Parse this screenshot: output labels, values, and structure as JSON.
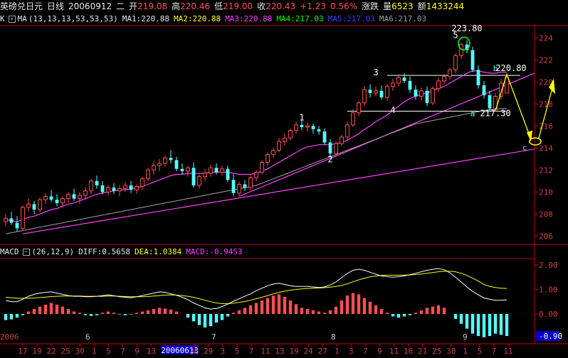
{
  "header": {
    "symbol": "英磅兑日元",
    "period": "日线",
    "date": "20060912",
    "weekday": "二",
    "open_label": "开",
    "open": "219.08",
    "high_label": "高",
    "high": "220.46",
    "low_label": "低",
    "low": "219.00",
    "close_label": "收",
    "close": "220.43",
    "change_label": "涨跌",
    "change": "+1.23",
    "change_pct": "0.56%",
    "volume_label": "量",
    "volume": "6523",
    "amount_label": "额",
    "amount": "1433244"
  },
  "ma_bar": {
    "prefix": "K",
    "name": "MA",
    "params": "(13,13,13,53,53,53)",
    "ma1": "MA1:220.88",
    "ma2": "MA2:220.88",
    "ma3": "MA3:220.88",
    "ma4": "MA4:217.03",
    "ma5": "MA5:217.03",
    "ma6": "MA6:217.03"
  },
  "macd_bar": {
    "name": "MACD",
    "params": "(26,12,9)",
    "diff": "DIFF:0.5658",
    "dea": "DEA:1.0384",
    "macd": "MACD:-0.9453"
  },
  "colors": {
    "up": "#ff5050",
    "down": "#54ffff",
    "ma_fast": "#ff40ff",
    "ma_slow": "#a0a0a0",
    "trendline": "#ff40ff",
    "annotation": "#ffff00",
    "axis": "#c00000"
  },
  "chart_data": [
    {
      "type": "candlestick",
      "title": "英磅兑日元 日线",
      "ylim": [
        205.5,
        225
      ],
      "y_ticks": [
        206,
        208,
        210,
        212,
        214,
        216,
        218,
        220,
        222,
        224
      ],
      "candles": [
        [
          207.3,
          208.0,
          206.9,
          207.6
        ],
        [
          207.6,
          208.2,
          207.0,
          207.2
        ],
        [
          207.2,
          207.8,
          206.4,
          206.7
        ],
        [
          206.7,
          208.8,
          206.5,
          208.6
        ],
        [
          208.6,
          209.4,
          208.2,
          208.9
        ],
        [
          208.9,
          209.2,
          208.0,
          208.4
        ],
        [
          208.4,
          209.5,
          208.2,
          209.3
        ],
        [
          209.3,
          209.9,
          208.9,
          209.6
        ],
        [
          209.6,
          210.2,
          209.1,
          209.3
        ],
        [
          209.3,
          209.8,
          208.7,
          209.0
        ],
        [
          209.0,
          209.6,
          208.6,
          209.4
        ],
        [
          209.4,
          210.0,
          209.0,
          209.8
        ],
        [
          209.8,
          210.3,
          209.2,
          209.4
        ],
        [
          209.4,
          210.0,
          208.9,
          209.7
        ],
        [
          209.7,
          210.4,
          209.3,
          210.1
        ],
        [
          210.1,
          211.2,
          209.8,
          211.0
        ],
        [
          211.0,
          211.5,
          210.3,
          210.6
        ],
        [
          210.6,
          211.0,
          209.8,
          210.0
        ],
        [
          210.0,
          210.6,
          209.7,
          210.4
        ],
        [
          210.4,
          210.8,
          209.8,
          210.1
        ],
        [
          210.1,
          210.6,
          209.6,
          210.3
        ],
        [
          210.3,
          210.9,
          210.0,
          210.6
        ],
        [
          210.6,
          211.0,
          209.9,
          210.2
        ],
        [
          210.2,
          210.7,
          209.8,
          210.5
        ],
        [
          210.5,
          211.4,
          210.2,
          211.2
        ],
        [
          211.2,
          212.2,
          211.0,
          212.0
        ],
        [
          212.0,
          212.8,
          211.6,
          212.4
        ],
        [
          212.4,
          213.0,
          211.9,
          212.6
        ],
        [
          212.6,
          213.3,
          212.3,
          213.1
        ],
        [
          213.1,
          213.8,
          212.6,
          212.9
        ],
        [
          212.9,
          213.2,
          211.9,
          212.1
        ],
        [
          212.1,
          212.6,
          211.6,
          211.9
        ],
        [
          211.9,
          212.4,
          211.4,
          212.2
        ],
        [
          212.2,
          212.7,
          210.4,
          210.6
        ],
        [
          210.6,
          211.6,
          210.3,
          211.4
        ],
        [
          211.4,
          212.1,
          211.0,
          211.7
        ],
        [
          211.7,
          212.5,
          211.4,
          212.2
        ],
        [
          212.2,
          212.6,
          211.6,
          211.8
        ],
        [
          211.8,
          212.4,
          211.5,
          212.1
        ],
        [
          212.1,
          212.4,
          210.9,
          211.1
        ],
        [
          211.1,
          211.6,
          209.6,
          209.9
        ],
        [
          209.9,
          210.9,
          209.6,
          210.7
        ],
        [
          210.7,
          211.1,
          210.1,
          210.4
        ],
        [
          210.4,
          211.5,
          210.2,
          211.3
        ],
        [
          211.3,
          212.0,
          211.0,
          211.8
        ],
        [
          211.8,
          212.9,
          211.6,
          212.7
        ],
        [
          212.7,
          213.6,
          212.4,
          213.4
        ],
        [
          213.4,
          214.0,
          213.1,
          213.8
        ],
        [
          213.8,
          214.9,
          213.6,
          214.6
        ],
        [
          214.6,
          215.3,
          214.2,
          214.9
        ],
        [
          214.9,
          215.8,
          214.7,
          215.6
        ],
        [
          215.6,
          216.4,
          215.3,
          216.1
        ],
        [
          216.1,
          216.6,
          215.6,
          215.9
        ],
        [
          215.9,
          216.3,
          215.5,
          216.0
        ],
        [
          216.0,
          216.2,
          215.3,
          215.7
        ],
        [
          215.7,
          216.0,
          215.2,
          215.5
        ],
        [
          215.5,
          215.8,
          214.3,
          214.5
        ],
        [
          214.5,
          214.8,
          213.1,
          213.5
        ],
        [
          213.5,
          214.6,
          213.3,
          214.4
        ],
        [
          214.4,
          215.2,
          214.2,
          215.0
        ],
        [
          215.0,
          216.4,
          214.8,
          216.1
        ],
        [
          216.1,
          217.5,
          215.9,
          217.2
        ],
        [
          217.2,
          218.3,
          216.9,
          218.1
        ],
        [
          218.1,
          219.6,
          217.8,
          219.3
        ],
        [
          219.3,
          219.8,
          218.6,
          219.0
        ],
        [
          219.0,
          219.6,
          218.7,
          219.2
        ],
        [
          219.2,
          219.7,
          218.4,
          218.6
        ],
        [
          218.6,
          219.8,
          218.3,
          219.6
        ],
        [
          219.6,
          220.3,
          219.2,
          219.9
        ],
        [
          219.9,
          220.7,
          219.6,
          220.4
        ],
        [
          220.4,
          220.8,
          219.9,
          220.1
        ],
        [
          220.1,
          220.5,
          219.0,
          219.3
        ],
        [
          219.3,
          219.7,
          218.4,
          218.7
        ],
        [
          218.7,
          219.5,
          218.3,
          219.2
        ],
        [
          219.2,
          219.6,
          217.8,
          218.1
        ],
        [
          218.1,
          219.6,
          217.9,
          219.4
        ],
        [
          219.4,
          220.4,
          219.1,
          220.1
        ],
        [
          220.1,
          220.7,
          219.8,
          220.5
        ],
        [
          220.5,
          221.3,
          220.2,
          221.1
        ],
        [
          221.1,
          222.6,
          220.8,
          222.4
        ],
        [
          222.4,
          223.6,
          222.1,
          223.4
        ],
        [
          223.4,
          223.8,
          222.6,
          222.9
        ],
        [
          222.9,
          223.2,
          220.9,
          221.1
        ],
        [
          221.1,
          221.5,
          219.4,
          219.7
        ],
        [
          219.7,
          220.1,
          218.5,
          218.8
        ],
        [
          218.8,
          219.2,
          217.3,
          217.6
        ],
        [
          217.6,
          219.0,
          217.3,
          218.7
        ],
        [
          218.7,
          220.3,
          218.4,
          219.9
        ],
        [
          219.0,
          220.46,
          219.0,
          220.43
        ]
      ],
      "ma_fast": [
        207.5,
        207.4,
        207.3,
        207.5,
        207.7,
        207.8,
        208.0,
        208.2,
        208.4,
        208.5,
        208.7,
        208.9,
        209.0,
        209.2,
        209.4,
        209.6,
        209.8,
        209.9,
        210.0,
        210.1,
        210.2,
        210.2,
        210.3,
        210.4,
        210.5,
        210.7,
        210.9,
        211.1,
        211.3,
        211.5,
        211.6,
        211.6,
        211.7,
        211.7,
        211.7,
        211.7,
        211.8,
        211.8,
        211.8,
        211.8,
        211.7,
        211.6,
        211.6,
        211.6,
        211.7,
        211.9,
        212.1,
        212.4,
        212.7,
        213.0,
        213.3,
        213.6,
        213.9,
        214.1,
        214.2,
        214.3,
        214.3,
        214.3,
        214.4,
        214.5,
        214.7,
        215.0,
        215.3,
        215.7,
        216.0,
        216.4,
        216.7,
        217.0,
        217.4,
        217.8,
        218.2,
        218.5,
        218.7,
        218.9,
        219.0,
        219.2,
        219.4,
        219.6,
        219.9,
        220.2,
        220.5,
        220.8,
        221.0,
        221.0,
        220.9,
        220.8,
        220.8,
        220.9,
        220.9
      ],
      "ma_slow": [
        206.2,
        206.3,
        206.4,
        206.5,
        206.6,
        206.7,
        206.8,
        206.9,
        207.0,
        207.1,
        207.2,
        207.3,
        207.4,
        207.5,
        207.6,
        207.7,
        207.8,
        207.9,
        208.0,
        208.1,
        208.2,
        208.3,
        208.4,
        208.5,
        208.6,
        208.7,
        208.8,
        208.9,
        209.0,
        209.1,
        209.2,
        209.3,
        209.4,
        209.5,
        209.6,
        209.7,
        209.8,
        209.9,
        210.0,
        210.1,
        210.2,
        210.3,
        210.4,
        210.5,
        210.6,
        210.8,
        211.0,
        211.2,
        211.4,
        211.6,
        211.8,
        212.0,
        212.2,
        212.4,
        212.6,
        212.8,
        213.0,
        213.2,
        213.4,
        213.6,
        213.8,
        214.0,
        214.2,
        214.4,
        214.6,
        214.8,
        215.0,
        215.2,
        215.4,
        215.6,
        215.8,
        216.0,
        216.2,
        216.3,
        216.4,
        216.5,
        216.6,
        216.7,
        216.8,
        216.9,
        217.0,
        217.1,
        217.2,
        217.3,
        217.4,
        217.5,
        217.5,
        217.6,
        217.6
      ],
      "annotations": {
        "wave_labels": [
          "1",
          "2",
          "3",
          "4",
          "5"
        ],
        "abc_labels": [
          "a",
          "b",
          "c"
        ],
        "price_labels": [
          "223.80",
          "220.80",
          "217.30"
        ]
      }
    },
    {
      "type": "macd",
      "ylim": [
        -1.1,
        2.2
      ],
      "y_ticks": [
        2.0,
        1.0,
        0.0,
        -0.9
      ],
      "y_tick_labels": [
        "2.00",
        "1.00",
        "0.00",
        "-0.90"
      ],
      "x_labels": [
        "2006",
        "6",
        "7",
        "8",
        "9"
      ],
      "date_ticks": [
        "17",
        "19",
        "22",
        "25",
        "30",
        "1",
        "5",
        "7",
        "9",
        "13",
        "15",
        "20060613",
        "26",
        "29",
        "3",
        "5",
        "7",
        "11",
        "13",
        "19",
        "24",
        "27",
        "1",
        "3",
        "7",
        "9",
        "11",
        "16",
        "21",
        "25",
        "30",
        "1",
        "5",
        "7",
        "11"
      ],
      "hist": [
        -0.25,
        -0.22,
        -0.15,
        -0.05,
        0.1,
        0.2,
        0.3,
        0.38,
        0.45,
        0.38,
        0.3,
        0.2,
        0.1,
        0.05,
        -0.05,
        -0.08,
        -0.05,
        0.05,
        0.1,
        0.05,
        -0.02,
        -0.05,
        -0.02,
        0.05,
        0.1,
        0.15,
        0.2,
        0.25,
        0.22,
        0.18,
        0.1,
        0.0,
        -0.15,
        -0.3,
        -0.45,
        -0.55,
        -0.5,
        -0.35,
        -0.25,
        -0.1,
        0.05,
        0.15,
        0.25,
        0.35,
        0.45,
        0.55,
        0.65,
        0.75,
        0.8,
        0.7,
        0.55,
        0.4,
        0.25,
        0.2,
        0.15,
        0.1,
        0.05,
        0.15,
        0.3,
        0.55,
        0.75,
        0.85,
        0.8,
        0.65,
        0.5,
        0.35,
        0.2,
        0.05,
        -0.1,
        -0.15,
        -0.1,
        -0.05,
        0.05,
        0.15,
        0.25,
        0.3,
        0.35,
        0.25,
        0.0,
        -0.2,
        -0.4,
        -0.6,
        -0.8,
        -0.9,
        -0.95,
        -0.9,
        -0.8,
        -0.85,
        -0.9
      ],
      "diff": [
        0.55,
        0.5,
        0.5,
        0.6,
        0.72,
        0.8,
        0.85,
        0.88,
        0.9,
        0.85,
        0.8,
        0.75,
        0.72,
        0.72,
        0.7,
        0.7,
        0.72,
        0.75,
        0.78,
        0.74,
        0.7,
        0.68,
        0.66,
        0.7,
        0.75,
        0.8,
        0.85,
        0.9,
        0.88,
        0.82,
        0.76,
        0.68,
        0.58,
        0.45,
        0.35,
        0.25,
        0.2,
        0.22,
        0.3,
        0.4,
        0.52,
        0.62,
        0.72,
        0.82,
        0.95,
        1.05,
        1.15,
        1.22,
        1.25,
        1.2,
        1.15,
        1.12,
        1.12,
        1.12,
        1.1,
        1.08,
        1.1,
        1.18,
        1.3,
        1.48,
        1.65,
        1.78,
        1.82,
        1.78,
        1.7,
        1.62,
        1.55,
        1.52,
        1.5,
        1.52,
        1.55,
        1.6,
        1.66,
        1.72,
        1.78,
        1.82,
        1.85,
        1.8,
        1.68,
        1.5,
        1.3,
        1.1,
        0.92,
        0.78,
        0.65,
        0.6,
        0.56,
        0.56,
        0.57
      ],
      "dea": [
        0.68,
        0.66,
        0.64,
        0.64,
        0.64,
        0.65,
        0.67,
        0.69,
        0.71,
        0.72,
        0.73,
        0.73,
        0.73,
        0.73,
        0.72,
        0.72,
        0.72,
        0.72,
        0.73,
        0.73,
        0.72,
        0.71,
        0.7,
        0.7,
        0.7,
        0.71,
        0.73,
        0.75,
        0.77,
        0.78,
        0.77,
        0.75,
        0.72,
        0.68,
        0.62,
        0.56,
        0.5,
        0.45,
        0.42,
        0.42,
        0.44,
        0.47,
        0.51,
        0.56,
        0.62,
        0.68,
        0.75,
        0.82,
        0.88,
        0.93,
        0.97,
        1.0,
        1.02,
        1.04,
        1.05,
        1.06,
        1.07,
        1.09,
        1.12,
        1.16,
        1.23,
        1.31,
        1.39,
        1.46,
        1.51,
        1.55,
        1.57,
        1.58,
        1.58,
        1.58,
        1.58,
        1.59,
        1.61,
        1.63,
        1.66,
        1.69,
        1.72,
        1.74,
        1.74,
        1.72,
        1.66,
        1.57,
        1.46,
        1.34,
        1.2,
        1.12,
        1.08,
        1.05,
        1.04
      ]
    }
  ]
}
